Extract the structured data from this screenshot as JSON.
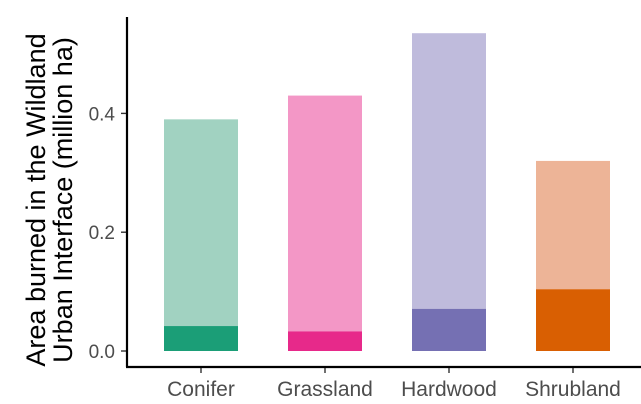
{
  "chart_data": {
    "type": "bar",
    "stacked": true,
    "categories": [
      "Conifer",
      "Grassland",
      "Hardwood",
      "Shrubland"
    ],
    "series": [
      {
        "values": [
          0.042,
          0.033,
          0.071,
          0.104
        ]
      },
      {
        "values": [
          0.348,
          0.397,
          0.464,
          0.216
        ]
      }
    ],
    "totals": [
      0.39,
      0.43,
      0.535,
      0.32
    ],
    "colors_dark": [
      "#1b9e77",
      "#e7298a",
      "#7570b3",
      "#d95f02"
    ],
    "colors_light": [
      "#a1d2c1",
      "#f397c6",
      "#bfbbdc",
      "#edb497"
    ],
    "title": "",
    "xlabel": "",
    "ylabel_lines": [
      "Area burned in the Wildland",
      "Urban Interface (million ha)"
    ],
    "ylim": [
      0,
      0.57
    ],
    "yticks": [
      0.0,
      0.2,
      0.4
    ],
    "ytick_labels": [
      "0.0",
      "0.2",
      "0.4"
    ],
    "grid": false,
    "legend": "none"
  }
}
